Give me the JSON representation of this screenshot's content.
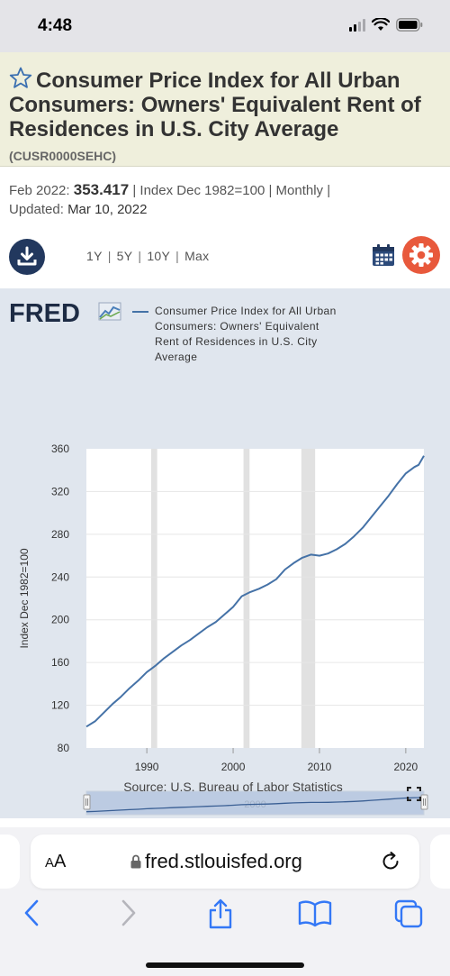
{
  "status_bar": {
    "time": "4:48"
  },
  "series": {
    "title": "Consumer Price Index for All Urban Consumers: Owners' Equivalent Rent of Residences in U.S. City Average",
    "id": "(CUSR0000SEHC)",
    "latest_label": "Feb 2022:",
    "latest_value": "353.417",
    "meta": "| Index Dec 1982=100 | Monthly |",
    "updated_label": "Updated:",
    "updated_date": "Mar 10, 2022"
  },
  "toolbar": {
    "ranges": [
      "1Y",
      "5Y",
      "10Y",
      "Max"
    ],
    "separator": "|"
  },
  "chart_logo": "FRED",
  "chart_data": {
    "type": "line",
    "ylabel": "Index Dec 1982=100",
    "ylim": [
      80,
      360
    ],
    "xlim": [
      1983.0,
      2022.1
    ],
    "y_ticks": [
      80,
      120,
      160,
      200,
      240,
      280,
      320,
      360
    ],
    "x_ticks": [
      1990,
      2000,
      2010,
      2020
    ],
    "grid": "horizontal",
    "legend_placement": "top",
    "recessions": [
      [
        1990.5,
        1991.2
      ],
      [
        2001.2,
        2001.9
      ],
      [
        2007.9,
        2009.5
      ]
    ],
    "series": [
      {
        "name": "Consumer Price Index for All Urban Consumers: Owners' Equivalent Rent of Residences in U.S. City Average",
        "color": "#4572a7",
        "x": [
          1983.0,
          1984.0,
          1985.0,
          1986.0,
          1987.0,
          1988.0,
          1989.0,
          1990.0,
          1990.5,
          1991.0,
          1992.0,
          1993.0,
          1994.0,
          1995.0,
          1996.0,
          1997.0,
          1998.0,
          1999.0,
          2000.0,
          2001.0,
          2002.0,
          2003.0,
          2004.0,
          2005.0,
          2006.0,
          2007.0,
          2008.0,
          2009.0,
          2010.0,
          2011.0,
          2012.0,
          2013.0,
          2014.0,
          2015.0,
          2016.0,
          2017.0,
          2018.0,
          2019.0,
          2020.0,
          2021.0,
          2021.5,
          2022.1
        ],
        "values": [
          100,
          105,
          113,
          121,
          128,
          136,
          143,
          151,
          154,
          157,
          164,
          170,
          176,
          181,
          187,
          193,
          198,
          205,
          212,
          222,
          226,
          229,
          233,
          238,
          247,
          253,
          258,
          261,
          260,
          262,
          266,
          271,
          278,
          286,
          296,
          306,
          316,
          327,
          337,
          343,
          345,
          353.417
        ]
      }
    ]
  },
  "chart_source": "Source: U.S. Bureau of Labor Statistics",
  "navigator_label": "2000",
  "browser": {
    "aa_small": "A",
    "aa_large": "A",
    "url": "fred.stlouisfed.org"
  },
  "colors": {
    "title_bg": "#efefdc",
    "chart_bg": "#e0e6ee",
    "line": "#4572a7",
    "navy": "#22385e",
    "accent_orange": "#e8593c",
    "ios_blue": "#3478f6"
  },
  "icons": [
    "star-icon",
    "download-icon",
    "calendar-icon",
    "gear-icon",
    "fullscreen-icon",
    "lock-icon",
    "reload-icon",
    "back-icon",
    "forward-icon",
    "share-icon",
    "bookmarks-icon",
    "tabs-icon"
  ]
}
